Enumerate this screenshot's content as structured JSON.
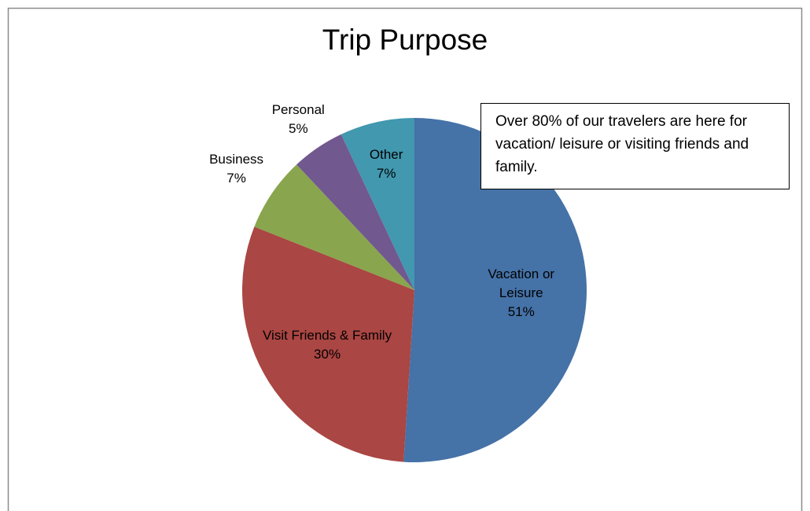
{
  "chart_data": {
    "type": "pie",
    "title": "Trip Purpose",
    "categories": [
      "Vacation or Leisure",
      "Visit Friends & Family",
      "Business",
      "Personal",
      "Other"
    ],
    "values": [
      51,
      30,
      7,
      5,
      7
    ],
    "value_labels": [
      "51%",
      "30%",
      "7%",
      "5%",
      "7%"
    ],
    "colors": [
      "#4572a7",
      "#aa4643",
      "#89a54e",
      "#71588f",
      "#4198af"
    ],
    "annotation": "Over 80% of our travelers are here for vacation/ leisure or visiting friends and family."
  }
}
